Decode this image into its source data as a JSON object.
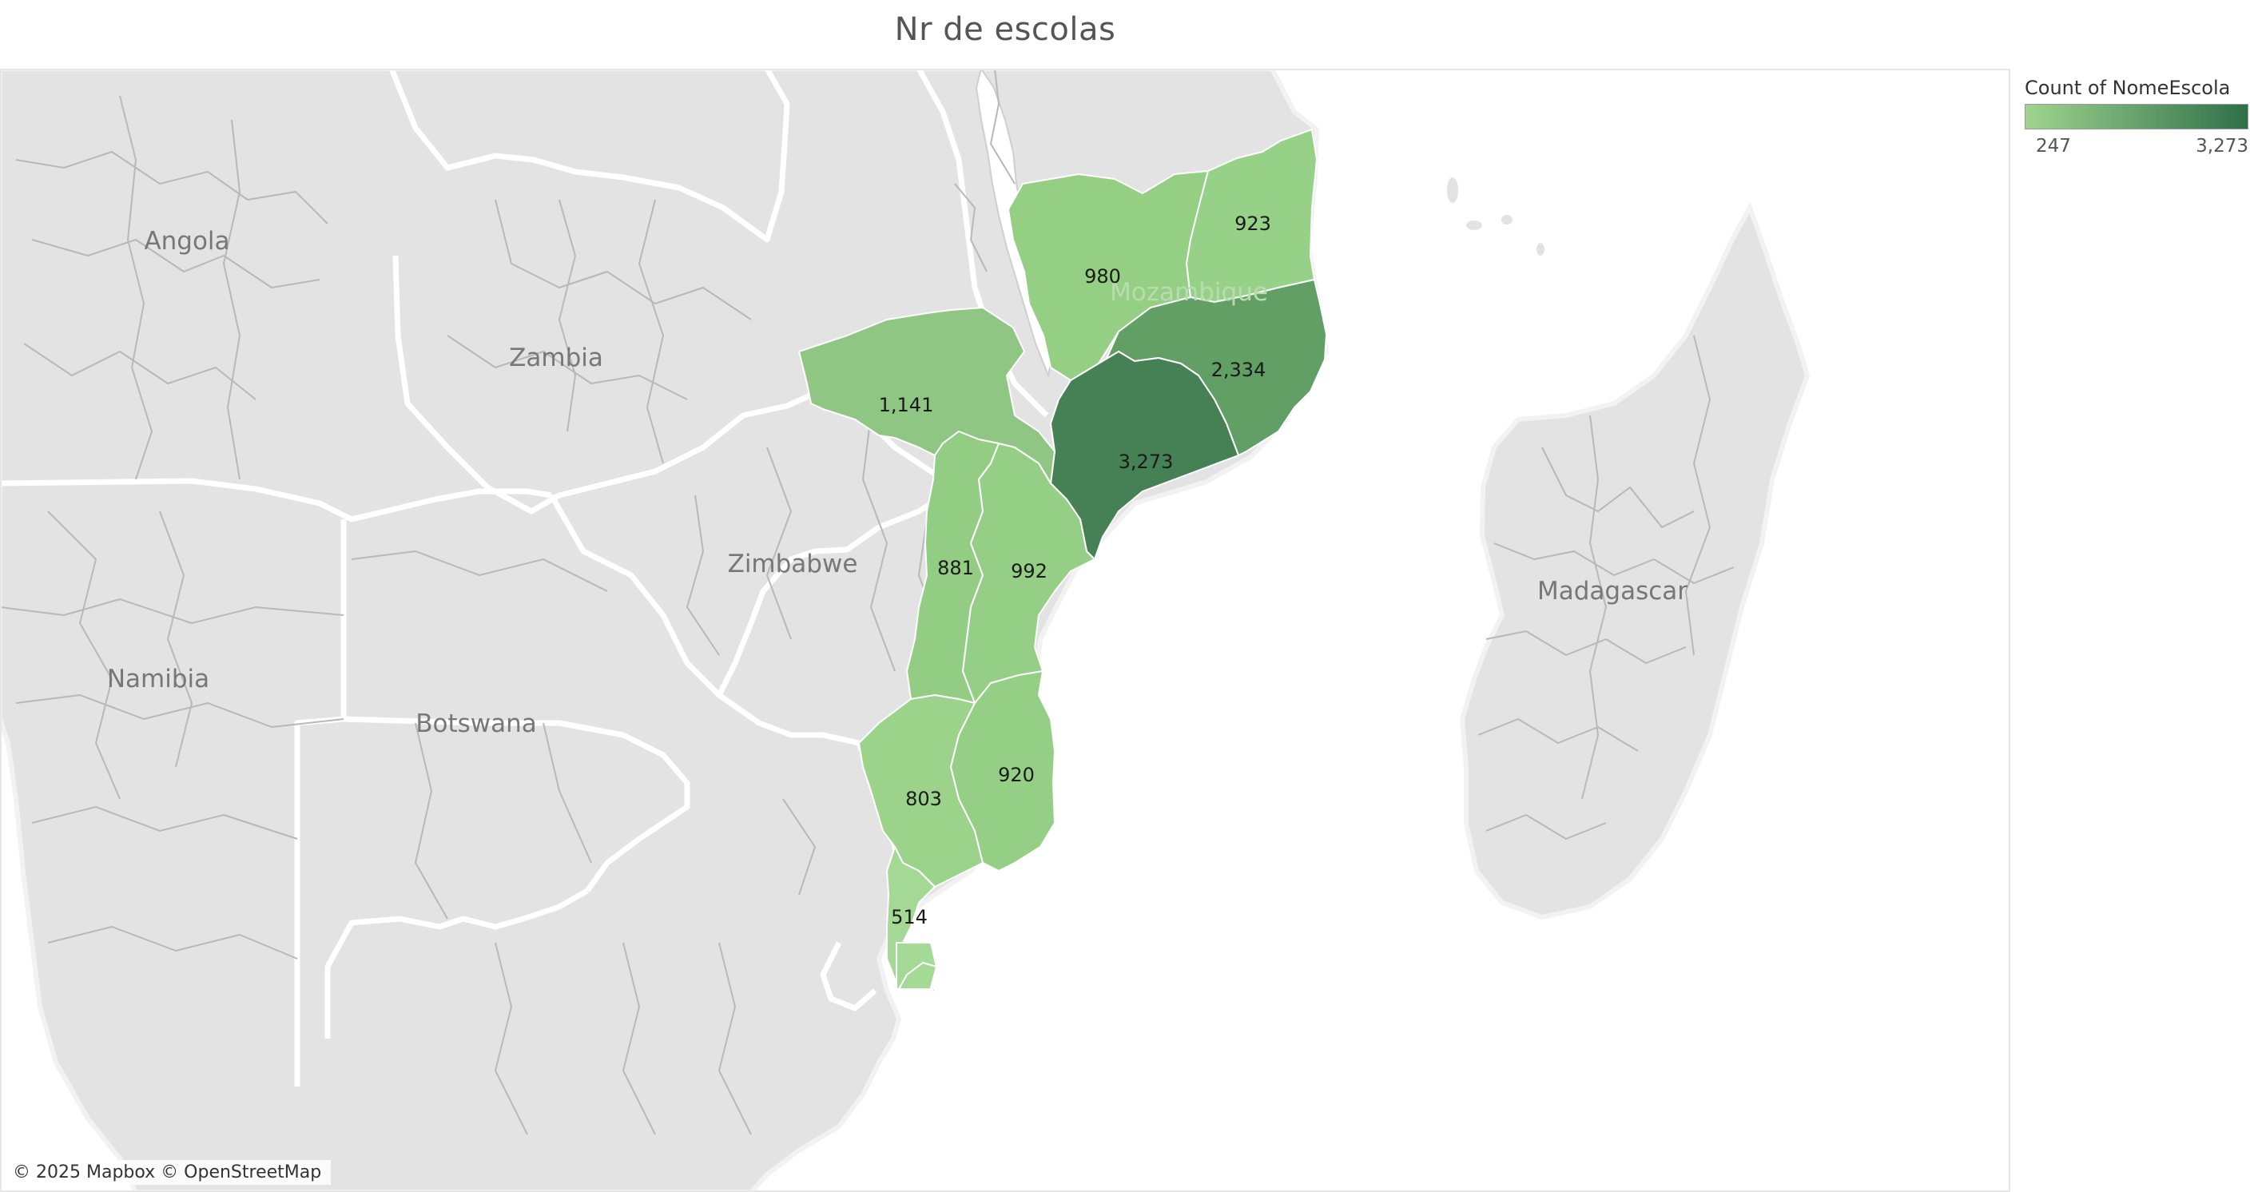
{
  "title": "Nr de escolas",
  "attribution": "© 2025 Mapbox © OpenStreetMap",
  "legend": {
    "title": "Count of NomeEscola",
    "min_label": "247",
    "max_label": "3,273",
    "color_low": "#a0d48f",
    "color_high": "#2e7048"
  },
  "country_labels": {
    "angola": "Angola",
    "zambia": "Zambia",
    "zimbabwe": "Zimbabwe",
    "namibia": "Namibia",
    "botswana": "Botswana",
    "mozambique": "Mozambique",
    "madagascar": "Madagascar"
  },
  "regions": [
    {
      "id": "niassa",
      "label": "980",
      "value": 980,
      "color": "#94cf84"
    },
    {
      "id": "cabo-delgado",
      "label": "923",
      "value": 923,
      "color": "#97d087"
    },
    {
      "id": "nampula",
      "label": "2,334",
      "value": 2334,
      "color": "#629f65"
    },
    {
      "id": "zambezia",
      "label": "3,273",
      "value": 3273,
      "color": "#468055"
    },
    {
      "id": "tete",
      "label": "1,141",
      "value": 1141,
      "color": "#8fc684"
    },
    {
      "id": "manica",
      "label": "881",
      "value": 881,
      "color": "#93cd83"
    },
    {
      "id": "sofala",
      "label": "992",
      "value": 992,
      "color": "#95cf85"
    },
    {
      "id": "gaza",
      "label": "803",
      "value": 803,
      "color": "#9bd38b"
    },
    {
      "id": "inhambane",
      "label": "920",
      "value": 920,
      "color": "#95cf85"
    },
    {
      "id": "maputo",
      "label": "514",
      "value": 514,
      "color": "#a4d895"
    },
    {
      "id": "maputo-city",
      "label": "",
      "value": 247,
      "color": "#a5d996"
    }
  ]
}
